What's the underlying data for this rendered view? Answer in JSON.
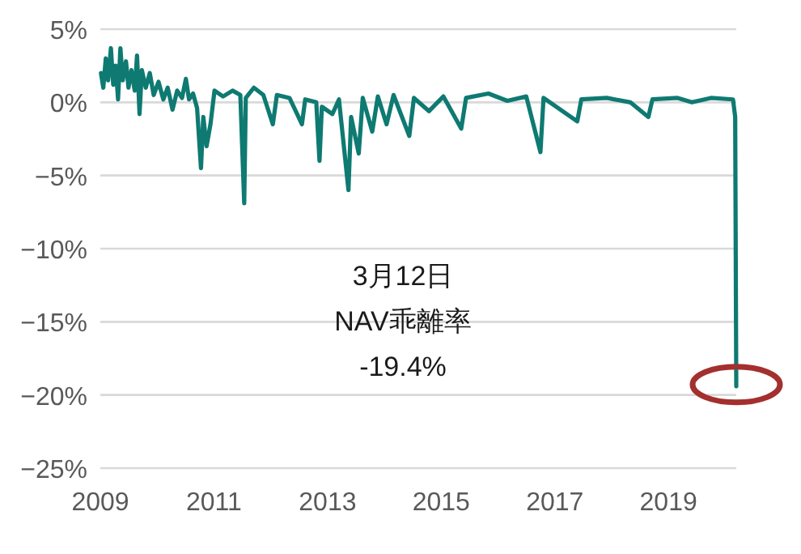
{
  "chart_data": {
    "type": "line",
    "x": [
      "2009-01-05",
      "2009-01-20",
      "2009-02-05",
      "2009-02-20",
      "2009-03-10",
      "2009-03-25",
      "2009-04-10",
      "2009-04-25",
      "2009-05-10",
      "2009-05-25",
      "2009-06-15",
      "2009-07-01",
      "2009-07-20",
      "2009-08-10",
      "2009-08-25",
      "2009-09-10",
      "2009-09-25",
      "2009-10-20",
      "2009-11-15",
      "2009-12-10",
      "2010-01-10",
      "2010-02-10",
      "2010-03-10",
      "2010-04-10",
      "2010-05-10",
      "2010-06-10",
      "2010-07-05",
      "2010-07-25",
      "2010-08-20",
      "2010-09-15",
      "2010-10-10",
      "2010-10-25",
      "2010-11-15",
      "2010-12-10",
      "2011-01-05",
      "2011-03-01",
      "2011-05-01",
      "2011-06-20",
      "2011-07-15",
      "2011-07-25",
      "2011-09-15",
      "2011-11-15",
      "2012-01-15",
      "2012-02-10",
      "2012-05-01",
      "2012-07-20",
      "2012-08-10",
      "2012-10-20",
      "2012-11-10",
      "2012-11-25",
      "2013-02-01",
      "2013-03-15",
      "2013-05-15",
      "2013-06-01",
      "2013-07-20",
      "2013-08-15",
      "2013-10-15",
      "2013-11-20",
      "2014-01-15",
      "2014-03-01",
      "2014-06-10",
      "2014-07-10",
      "2014-10-15",
      "2015-01-15",
      "2015-05-10",
      "2015-06-10",
      "2015-11-01",
      "2016-03-01",
      "2016-07-01",
      "2016-09-30",
      "2016-10-20",
      "2017-05-25",
      "2017-06-20",
      "2017-12-01",
      "2018-05-01",
      "2018-08-25",
      "2018-09-20",
      "2019-03-01",
      "2019-06-01",
      "2019-10-01",
      "2020-02-20",
      "2020-03-05",
      "2020-03-12"
    ],
    "series": [
      {
        "color": "#0e7a72",
        "values": [
          2.0,
          1.0,
          3.0,
          1.5,
          3.7,
          1.2,
          2.5,
          0.2,
          3.7,
          1.5,
          2.8,
          1.0,
          2.2,
          0.8,
          3.2,
          -0.8,
          2.2,
          1.0,
          2.0,
          0.5,
          1.4,
          0.2,
          1.0,
          -0.5,
          0.8,
          0.3,
          1.6,
          0.2,
          0.6,
          -0.4,
          -4.5,
          -1.0,
          -3.0,
          -1.5,
          0.8,
          0.4,
          0.8,
          0.5,
          -6.9,
          0.3,
          1.0,
          0.5,
          -1.5,
          0.5,
          0.3,
          -1.5,
          0.2,
          0.0,
          -4.0,
          -0.3,
          -0.8,
          0.2,
          -6.0,
          -1.0,
          -3.5,
          0.3,
          -2.0,
          0.4,
          -1.5,
          0.5,
          -2.3,
          0.3,
          -0.6,
          0.4,
          -1.8,
          0.3,
          0.6,
          0.1,
          0.4,
          -3.4,
          0.3,
          -1.3,
          0.2,
          0.3,
          0.0,
          -1.0,
          0.2,
          0.3,
          0.0,
          0.3,
          0.2,
          -1.0,
          -19.4
        ]
      }
    ],
    "xlim": [
      "2009-01-01",
      "2020-03-12"
    ],
    "xticks": [
      {
        "value": "2009-01-01",
        "label": "2009"
      },
      {
        "value": "2011-01-01",
        "label": "2011"
      },
      {
        "value": "2013-01-01",
        "label": "2013"
      },
      {
        "value": "2015-01-01",
        "label": "2015"
      },
      {
        "value": "2017-01-01",
        "label": "2017"
      },
      {
        "value": "2019-01-01",
        "label": "2019"
      }
    ],
    "ylim": [
      -25,
      5
    ],
    "yticks": [
      {
        "value": 5,
        "label": "5%"
      },
      {
        "value": 0,
        "label": "0%"
      },
      {
        "value": -5,
        "label": "−5%"
      },
      {
        "value": -10,
        "label": "−10%"
      },
      {
        "value": -15,
        "label": "−15%"
      },
      {
        "value": -20,
        "label": "−20%"
      },
      {
        "value": -25,
        "label": "−25%"
      }
    ],
    "grid": "y",
    "annotations": [
      "3月12日\nNAV乖離率\n-19.4%"
    ]
  }
}
